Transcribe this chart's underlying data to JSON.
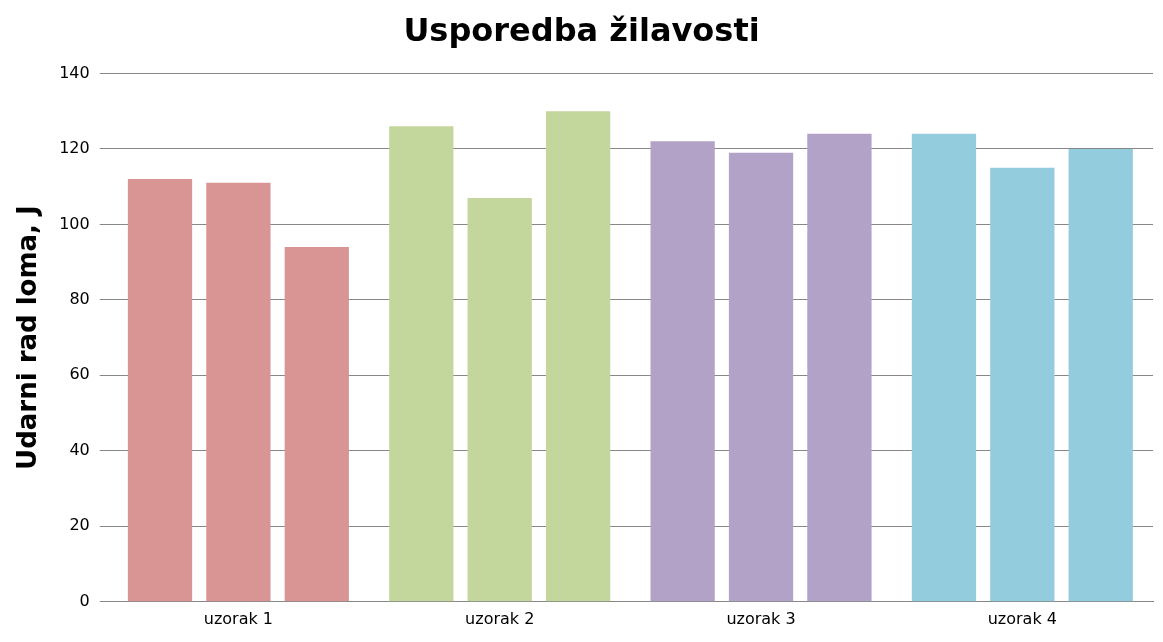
{
  "chart_data": {
    "type": "bar",
    "title": "Usporedba žilavosti",
    "ylabel": "Udarni rad loma, J",
    "categories": [
      "uzorak 1",
      "uzorak 2",
      "uzorak 3",
      "uzorak 4"
    ],
    "series": [
      {
        "colors": [
          "#d99594",
          "#c3d69b",
          "#b2a2c7",
          "#93cddd"
        ],
        "values": [
          112,
          126,
          122,
          124
        ]
      },
      {
        "colors": [
          "#d99594",
          "#c3d69b",
          "#b2a2c7",
          "#93cddd"
        ],
        "values": [
          111,
          107,
          119,
          115
        ]
      },
      {
        "colors": [
          "#d99594",
          "#c3d69b",
          "#b2a2c7",
          "#93cddd"
        ],
        "values": [
          94,
          130,
          124,
          120
        ]
      }
    ],
    "ylim": [
      0,
      140
    ],
    "yticks": [
      0,
      20,
      40,
      60,
      80,
      100,
      120,
      140
    ],
    "grid": "y",
    "legend": false
  }
}
